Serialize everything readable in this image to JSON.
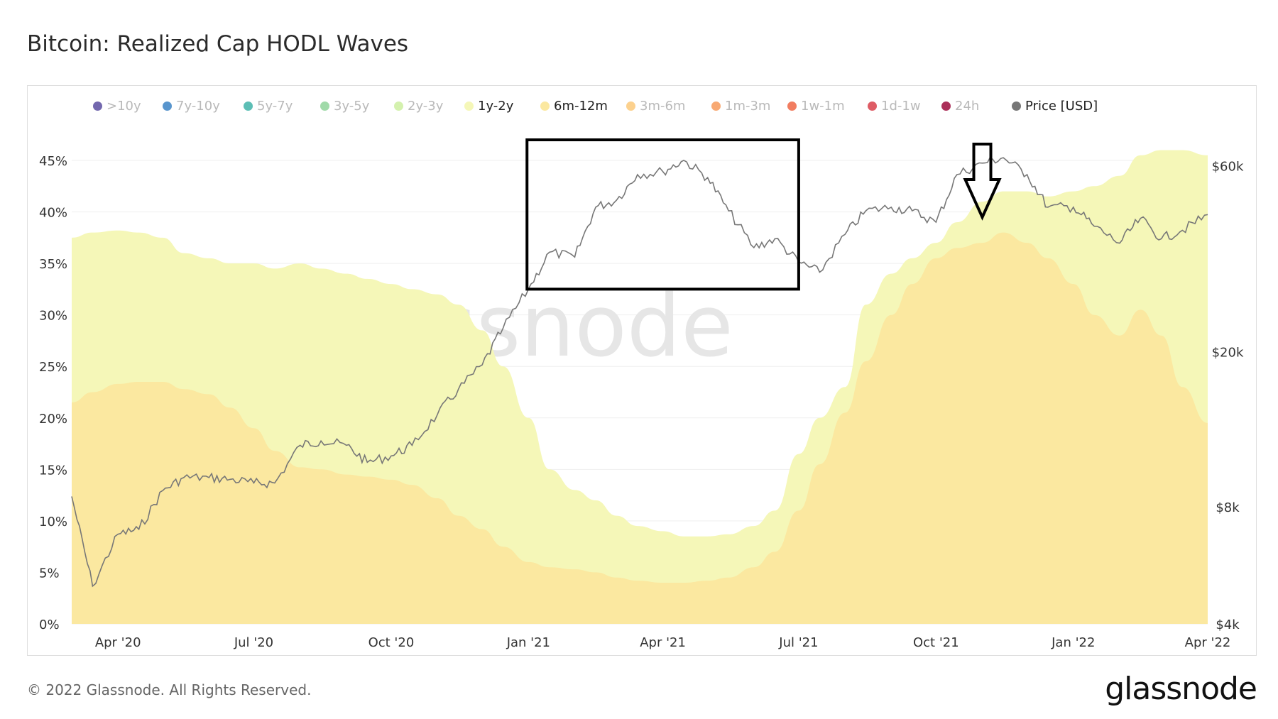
{
  "title": "Bitcoin: Realized Cap HODL Waves",
  "footer": "© 2022 Glassnode. All Rights Reserved.",
  "brand": "glassnode",
  "watermark": "glassnode",
  "legend": [
    {
      "label": ">10y",
      "color": "#5b4da0",
      "active": false
    },
    {
      "label": "7y-10y",
      "color": "#3b82c4",
      "active": false
    },
    {
      "label": "5y-7y",
      "color": "#3fb3a8",
      "active": false
    },
    {
      "label": "3y-5y",
      "color": "#8fd39a",
      "active": false
    },
    {
      "label": "2y-3y",
      "color": "#cdeea0",
      "active": false
    },
    {
      "label": "1y-2y",
      "color": "#f5f7b8",
      "active": true
    },
    {
      "label": "6m-12m",
      "color": "#fbe8a0",
      "active": true
    },
    {
      "label": "3m-6m",
      "color": "#fbc97a",
      "active": false
    },
    {
      "label": "1m-3m",
      "color": "#f79a5a",
      "active": false
    },
    {
      "label": "1w-1m",
      "color": "#ee6644",
      "active": false
    },
    {
      "label": "1d-1w",
      "color": "#d8404a",
      "active": false
    },
    {
      "label": "24h",
      "color": "#9c0a3c",
      "active": false
    },
    {
      "label": "Price [USD]",
      "color": "#777777",
      "active": true
    }
  ],
  "chart_data": {
    "type": "area",
    "x_ticks": [
      "Apr '20",
      "Jul '20",
      "Oct '20",
      "Jan '21",
      "Apr '21",
      "Jul '21",
      "Oct '21",
      "Jan '22",
      "Apr '22"
    ],
    "y_ticks": [
      "0%",
      "5%",
      "10%",
      "15%",
      "20%",
      "25%",
      "30%",
      "35%",
      "40%",
      "45%"
    ],
    "ylim": [
      0,
      47
    ],
    "y2_ticks": [
      "$4k",
      "$8k",
      "$20k",
      "$60k"
    ],
    "y2_scale": "log",
    "y2lim": [
      4000,
      70000
    ],
    "x": [
      "2020-03-01",
      "2020-03-15",
      "2020-04-01",
      "2020-04-15",
      "2020-05-01",
      "2020-05-15",
      "2020-06-01",
      "2020-06-15",
      "2020-07-01",
      "2020-07-15",
      "2020-08-01",
      "2020-08-15",
      "2020-09-01",
      "2020-09-15",
      "2020-10-01",
      "2020-10-15",
      "2020-11-01",
      "2020-11-15",
      "2020-12-01",
      "2020-12-15",
      "2021-01-01",
      "2021-01-15",
      "2021-02-01",
      "2021-02-15",
      "2021-03-01",
      "2021-03-15",
      "2021-04-01",
      "2021-04-15",
      "2021-05-01",
      "2021-05-15",
      "2021-06-01",
      "2021-06-15",
      "2021-07-01",
      "2021-07-15",
      "2021-08-01",
      "2021-08-15",
      "2021-09-01",
      "2021-09-15",
      "2021-10-01",
      "2021-10-15",
      "2021-11-01",
      "2021-11-15",
      "2021-12-01",
      "2021-12-15",
      "2022-01-01",
      "2022-01-15",
      "2022-02-01",
      "2022-02-15",
      "2022-03-01",
      "2022-03-15",
      "2022-04-01"
    ],
    "series": [
      {
        "name": "6m-12m",
        "color": "#fbe8a0",
        "values": [
          21.5,
          22.5,
          23.3,
          23.5,
          23.5,
          22.8,
          22.3,
          21.0,
          19.0,
          16.8,
          15.2,
          15.0,
          14.5,
          14.3,
          14.0,
          13.5,
          12.2,
          10.5,
          9.2,
          7.5,
          6.0,
          5.5,
          5.3,
          5.0,
          4.5,
          4.2,
          4.0,
          4.0,
          4.2,
          4.5,
          5.5,
          7.0,
          11.0,
          15.5,
          20.5,
          25.5,
          30.0,
          33.0,
          35.5,
          36.5,
          37.0,
          38.0,
          37.0,
          35.5,
          33.0,
          30.0,
          28.0,
          30.5,
          28.0,
          23.0,
          19.5
        ]
      },
      {
        "name": "1y-2y",
        "color": "#f5f7b8",
        "values": [
          37.5,
          38.0,
          38.2,
          38.0,
          37.5,
          36.0,
          35.5,
          35.0,
          35.0,
          34.5,
          35.0,
          34.5,
          34.0,
          33.5,
          33.0,
          32.5,
          32.0,
          31.0,
          28.5,
          25.0,
          20.0,
          15.0,
          13.0,
          12.0,
          10.5,
          9.5,
          9.0,
          8.5,
          8.5,
          8.7,
          9.5,
          11.0,
          16.5,
          20.0,
          23.0,
          31.0,
          34.0,
          35.5,
          37.0,
          39.0,
          41.0,
          42.0,
          42.0,
          41.5,
          42.0,
          42.5,
          43.5,
          45.5,
          46.0,
          46.0,
          45.5
        ]
      }
    ],
    "price_series": {
      "name": "Price [USD]",
      "color": "#777777",
      "values": [
        8500,
        5000,
        6800,
        7000,
        8800,
        9500,
        9500,
        9400,
        9200,
        9200,
        11500,
        11800,
        11500,
        10400,
        10800,
        11500,
        13800,
        16000,
        18500,
        23000,
        29000,
        36000,
        35000,
        47000,
        49000,
        57000,
        58000,
        62000,
        56000,
        46000,
        37000,
        39000,
        34000,
        32000,
        40000,
        46000,
        47000,
        46000,
        43000,
        57000,
        61000,
        63000,
        57000,
        47000,
        47000,
        42000,
        38000,
        44000,
        39000,
        41000,
        45000
      ]
    },
    "annotations": [
      {
        "type": "rectangle",
        "from": "2020-12-31",
        "to": "2021-07-01",
        "y_from": 32.5,
        "y_to": 47
      },
      {
        "type": "arrow",
        "direction": "down",
        "at": "2021-11-01"
      }
    ],
    "grid": true,
    "legend_position": "top"
  }
}
